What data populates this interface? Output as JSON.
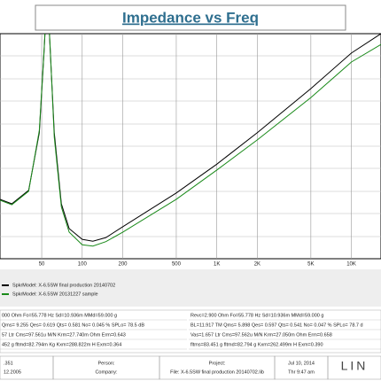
{
  "chart_data": {
    "type": "line",
    "title": "Impedance vs Freq",
    "log_x": true,
    "grid": true,
    "xlim": [
      24.5,
      16600
    ],
    "ylim": [
      0,
      50
    ],
    "xticks": [
      50,
      100,
      200,
      500,
      {
        "value": 1000,
        "label": "1K"
      },
      {
        "value": 2000,
        "label": "2K"
      },
      {
        "value": 5000,
        "label": "5K"
      },
      {
        "value": 10000,
        "label": "10K"
      }
    ],
    "x": [
      24.5,
      30,
      40,
      48,
      52,
      55,
      58,
      62,
      70,
      80,
      100,
      120,
      150,
      200,
      500,
      1000,
      2000,
      5000,
      10000,
      16600
    ],
    "series": [
      {
        "name": "SpkrModel: X-6.5SW final production 20140702",
        "color": "#000000",
        "values": [
          13.2,
          12.2,
          15.2,
          28,
          45.7,
          60,
          45.7,
          28,
          12.2,
          6.7,
          4.3,
          3.9,
          4.7,
          7.1,
          14.6,
          21,
          28,
          37.8,
          45.7,
          50
        ]
      },
      {
        "name": "SpkrModel: X-6.5SW     20131227 sample",
        "color": "#1a8a1a",
        "values": [
          13,
          12,
          15,
          28.5,
          46,
          60,
          46,
          27,
          11.5,
          5.9,
          3.1,
          2.8,
          3.8,
          5.9,
          13.2,
          19.7,
          26.4,
          35.8,
          43.7,
          47.6
        ]
      }
    ]
  },
  "params": {
    "left": [
      "000 Ohm  Fo=55.778 Hz  Sd=10.936m  MMd=59.000 g",
      "Qms= 9.255  Qes= 0.619  Qts= 0.581  No= 0.045 %  SPLo= 78.5 dB",
      "57 Ltr  Cms=97.561u M/N  Krm=27.740m Ohm  Erm=0.643",
      "452 g  fltmd=82.794m Kg  Kxm=288.822m H  Exm=0.364"
    ],
    "right": [
      "Revc=2.900 Ohm  Fo=55.778 Hz  Sd=10.936m  MMd=59.000 g",
      "BL=11.917 TM  Qms= 5.898  Qes= 0.597  Qts= 0.541  No= 0.047 %  SPLo= 78.7 d",
      "Vas=1.657 Ltr  Cms=97.562u M/N  Krm=27.050m Ohm  Erm=0.658",
      "fltms=83.451 g  fltmd=82.794 g  Kxm=262.499m H  Exm=0.390"
    ]
  },
  "footer": {
    "version": ".351",
    "date_left": "12.2005",
    "person": "Person:",
    "company": "Company:",
    "project": "Project:",
    "file": "File: X-6.5SW final production 20140702.lib",
    "date": "Jul 10, 2014",
    "time": "Thr  9:47 am",
    "logo": "LIN"
  }
}
